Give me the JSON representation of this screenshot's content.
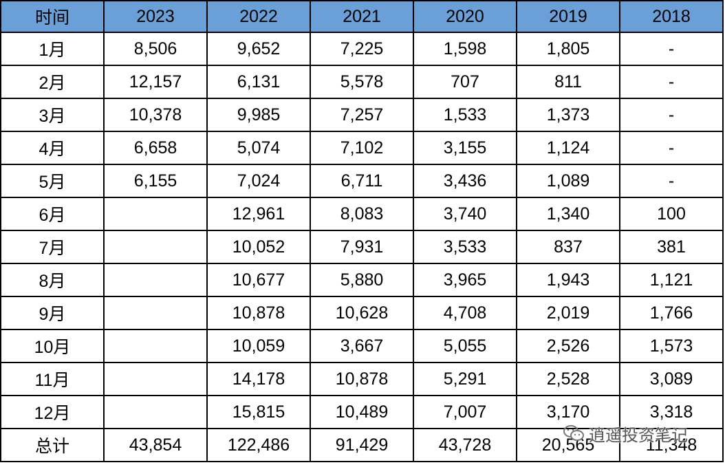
{
  "table": {
    "header": [
      "时间",
      "2023",
      "2022",
      "2021",
      "2020",
      "2019",
      "2018"
    ],
    "rows": [
      [
        "1月",
        "8,506",
        "9,652",
        "7,225",
        "1,598",
        "1,805",
        "-"
      ],
      [
        "2月",
        "12,157",
        "6,131",
        "5,578",
        "707",
        "811",
        "-"
      ],
      [
        "3月",
        "10,378",
        "9,985",
        "7,257",
        "1,533",
        "1,373",
        "-"
      ],
      [
        "4月",
        "6,658",
        "5,074",
        "7,102",
        "3,155",
        "1,124",
        "-"
      ],
      [
        "5月",
        "6,155",
        "7,024",
        "6,711",
        "3,436",
        "1,089",
        "-"
      ],
      [
        "6月",
        null,
        "12,961",
        "8,083",
        "3,740",
        "1,340",
        "100"
      ],
      [
        "7月",
        null,
        "10,052",
        "7,931",
        "3,533",
        "837",
        "381"
      ],
      [
        "8月",
        null,
        "10,677",
        "5,880",
        "3,965",
        "1,943",
        "1,121"
      ],
      [
        "9月",
        null,
        "10,878",
        "10,628",
        "4,708",
        "2,019",
        "1,766"
      ],
      [
        "10月",
        null,
        "10,059",
        "3,667",
        "5,055",
        "2,526",
        "1,573"
      ],
      [
        "11月",
        null,
        "14,178",
        "10,878",
        "5,291",
        "2,528",
        "3,089"
      ],
      [
        "12月",
        null,
        "15,815",
        "10,489",
        "7,007",
        "3,170",
        "3,318"
      ],
      [
        "总计",
        "43,854",
        "122,486",
        "91,429",
        "43,728",
        "20,565",
        "11,348"
      ]
    ]
  },
  "watermark": "逍遥投资笔记"
}
